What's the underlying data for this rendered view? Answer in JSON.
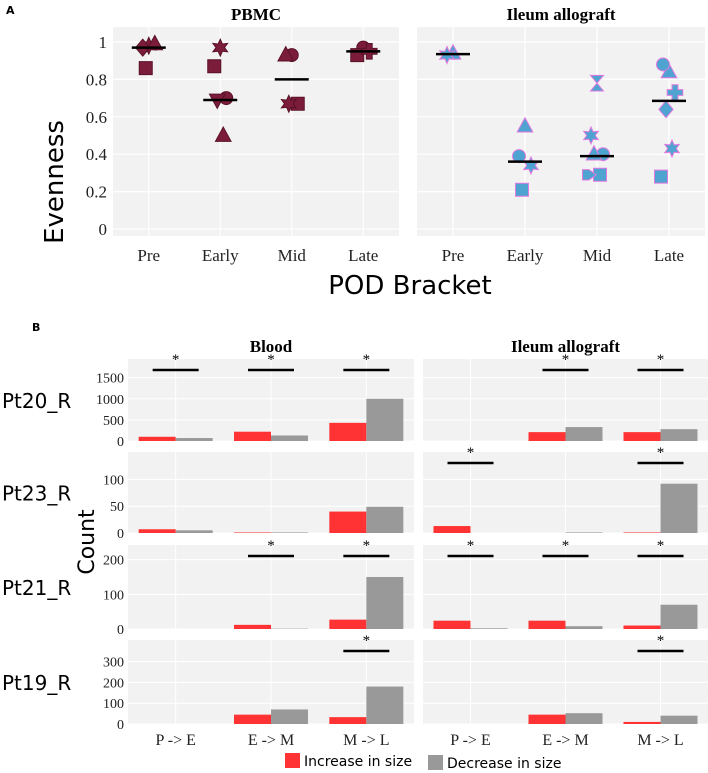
{
  "colors": {
    "pbmc": "#7b1c3a",
    "ileum": "#4fa3d1",
    "ileum_stroke": "#e07adf",
    "increase": "#ff3333",
    "decrease": "#999999",
    "panel_bg": "#f2f2f2"
  },
  "chart_data": [
    {
      "panel_label": "A",
      "type": "scatter",
      "ylabel": "Evenness",
      "xlabel": "POD Bracket",
      "ylim": [
        0,
        1
      ],
      "yticks": [
        "0",
        "0.2",
        "0.4",
        "0.6",
        "0.8",
        "1"
      ],
      "categories": [
        "Pre",
        "Early",
        "Mid",
        "Late"
      ],
      "facets": [
        {
          "title": "PBMC",
          "means": [
            0.97,
            0.69,
            0.8,
            0.95
          ],
          "points": [
            {
              "cat": "Pre",
              "y": 0.98,
              "shape": "star"
            },
            {
              "cat": "Pre",
              "y": 0.97,
              "shape": "diamond"
            },
            {
              "cat": "Pre",
              "y": 0.99,
              "shape": "triangle"
            },
            {
              "cat": "Pre",
              "y": 0.86,
              "shape": "square"
            },
            {
              "cat": "Early",
              "y": 0.97,
              "shape": "star"
            },
            {
              "cat": "Early",
              "y": 0.87,
              "shape": "square"
            },
            {
              "cat": "Early",
              "y": 0.7,
              "shape": "circle"
            },
            {
              "cat": "Early",
              "y": 0.69,
              "shape": "triangle-down"
            },
            {
              "cat": "Early",
              "y": 0.5,
              "shape": "triangle"
            },
            {
              "cat": "Mid",
              "y": 0.93,
              "shape": "circle"
            },
            {
              "cat": "Mid",
              "y": 0.93,
              "shape": "triangle"
            },
            {
              "cat": "Mid",
              "y": 0.67,
              "shape": "square"
            },
            {
              "cat": "Mid",
              "y": 0.67,
              "shape": "star"
            },
            {
              "cat": "Late",
              "y": 0.97,
              "shape": "circle"
            },
            {
              "cat": "Late",
              "y": 0.93,
              "shape": "square"
            },
            {
              "cat": "Late",
              "y": 0.95,
              "shape": "cross"
            }
          ]
        },
        {
          "title": "Ileum allograft",
          "means": [
            0.935,
            0.36,
            0.39,
            0.685
          ],
          "points": [
            {
              "cat": "Pre",
              "y": 0.94,
              "shape": "triangle"
            },
            {
              "cat": "Pre",
              "y": 0.93,
              "shape": "star"
            },
            {
              "cat": "Early",
              "y": 0.55,
              "shape": "triangle"
            },
            {
              "cat": "Early",
              "y": 0.39,
              "shape": "circle"
            },
            {
              "cat": "Early",
              "y": 0.34,
              "shape": "star"
            },
            {
              "cat": "Early",
              "y": 0.21,
              "shape": "square"
            },
            {
              "cat": "Mid",
              "y": 0.78,
              "shape": "hourglass"
            },
            {
              "cat": "Mid",
              "y": 0.5,
              "shape": "star"
            },
            {
              "cat": "Mid",
              "y": 0.4,
              "shape": "circle"
            },
            {
              "cat": "Mid",
              "y": 0.4,
              "shape": "triangle"
            },
            {
              "cat": "Mid",
              "y": 0.29,
              "shape": "square"
            },
            {
              "cat": "Mid",
              "y": 0.29,
              "shape": "arrow"
            },
            {
              "cat": "Late",
              "y": 0.84,
              "shape": "triangle"
            },
            {
              "cat": "Late",
              "y": 0.88,
              "shape": "circle"
            },
            {
              "cat": "Late",
              "y": 0.73,
              "shape": "cross"
            },
            {
              "cat": "Late",
              "y": 0.64,
              "shape": "diamond"
            },
            {
              "cat": "Late",
              "y": 0.43,
              "shape": "star"
            },
            {
              "cat": "Late",
              "y": 0.28,
              "shape": "square"
            }
          ]
        }
      ]
    },
    {
      "panel_label": "B",
      "type": "bar",
      "ylabel": "Count",
      "categories": [
        "P -> E",
        "E -> M",
        "M -> L"
      ],
      "columns": [
        "Blood",
        "Ileum allograft"
      ],
      "legend": {
        "position": "bottom",
        "increase": "Increase in size",
        "decrease": "Decrease in size"
      },
      "significance_mark": "*",
      "rows": [
        {
          "name": "Pt20_R",
          "ylim": [
            0,
            1800
          ],
          "yticks": [
            "0",
            "500",
            "1000",
            "1500"
          ],
          "tickvals": [
            0,
            500,
            1000,
            1500
          ],
          "blood": {
            "increase": [
              100,
              220,
              430
            ],
            "decrease": [
              70,
              130,
              1000
            ],
            "sig": [
              true,
              true,
              true
            ]
          },
          "ileum": {
            "increase": [
              0,
              210,
              210
            ],
            "decrease": [
              0,
              330,
              280
            ],
            "sig": [
              false,
              true,
              true
            ]
          }
        },
        {
          "name": "Pt23_R",
          "ylim": [
            0,
            140
          ],
          "yticks": [
            "0",
            "50",
            "100"
          ],
          "tickvals": [
            0,
            50,
            100
          ],
          "blood": {
            "increase": [
              7,
              1,
              40
            ],
            "decrease": [
              5,
              1,
              49
            ],
            "sig": [
              false,
              false,
              false
            ]
          },
          "ileum": {
            "increase": [
              13,
              0,
              1
            ],
            "decrease": [
              0,
              1,
              92
            ],
            "sig": [
              true,
              false,
              true
            ]
          }
        },
        {
          "name": "Pt21_R",
          "ylim": [
            0,
            225
          ],
          "yticks": [
            "0",
            "100",
            "200"
          ],
          "tickvals": [
            0,
            100,
            200
          ],
          "blood": {
            "increase": [
              0,
              12,
              27
            ],
            "decrease": [
              0,
              1,
              150
            ],
            "sig": [
              false,
              true,
              true
            ]
          },
          "ileum": {
            "increase": [
              24,
              24,
              10
            ],
            "decrease": [
              2,
              8,
              70
            ],
            "sig": [
              true,
              true,
              true
            ]
          }
        },
        {
          "name": "Pt19_R",
          "ylim": [
            0,
            375
          ],
          "yticks": [
            "0",
            "100",
            "200",
            "300"
          ],
          "tickvals": [
            0,
            100,
            200,
            300
          ],
          "blood": {
            "increase": [
              0,
              45,
              33
            ],
            "decrease": [
              0,
              70,
              180
            ],
            "sig": [
              false,
              false,
              true
            ]
          },
          "ileum": {
            "increase": [
              0,
              45,
              10
            ],
            "decrease": [
              0,
              52,
              40
            ],
            "sig": [
              false,
              false,
              true
            ]
          }
        }
      ]
    }
  ]
}
